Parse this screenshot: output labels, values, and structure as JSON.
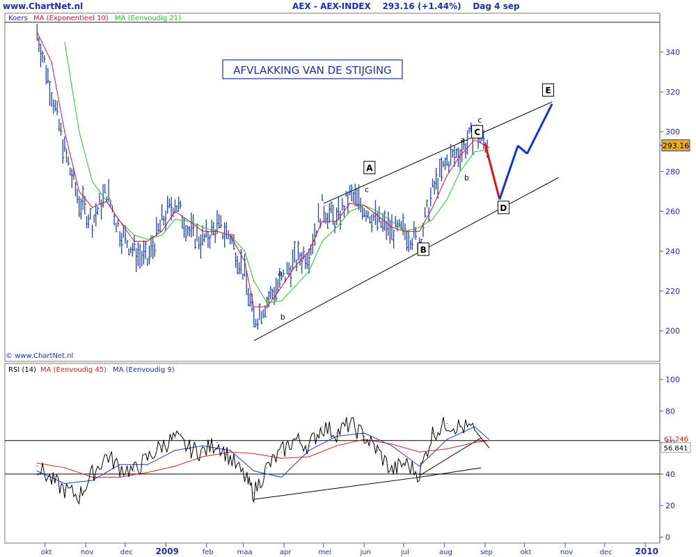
{
  "header": {
    "site": "www.ChartNet.nl",
    "instrument": "AEX - AEX-INDEX",
    "last_value": "293.16",
    "change": "(+1.44%)",
    "period": "Dag",
    "date": "4 sep"
  },
  "colors": {
    "price_bars": "#1f3fc0",
    "ema10": "#d4143c",
    "sma21": "#26c626",
    "rsi": "#000000",
    "rsi_ma45": "#d42020",
    "rsi_ma9": "#1f3fc0",
    "projection_down": "#e01010",
    "projection_up": "#1030e0",
    "axis_text": "#1c2fb0",
    "price_tag_bg": "#f0b01c"
  },
  "chart_data": [
    {
      "type": "line",
      "panel": "price",
      "legend": [
        "Koers",
        "MA (Exponentieel 10)",
        "MA (Eenvoudig 21)"
      ],
      "title_box": "AFVLAKKING VAN DE STIJGING",
      "watermark": "© www.ChartNet.nl",
      "yticks": [
        200,
        220,
        240,
        260,
        280,
        300,
        320,
        340
      ],
      "ylim": [
        185,
        355
      ],
      "last_price_label": "293.16",
      "x_months": [
        "okt",
        "nov",
        "dec",
        "2009",
        "feb",
        "maa",
        "apr",
        "mei",
        "jun",
        "jul",
        "aug",
        "sep",
        "okt",
        "nov",
        "dec",
        "2010"
      ],
      "x_year_labels": [
        "2009",
        "2010"
      ],
      "grid": false,
      "series": [
        {
          "name": "Koers",
          "style": "ohlc-bars",
          "x": [
            "2008-09-25",
            "2008-10-06",
            "2008-10-16",
            "2008-10-27",
            "2008-11-06",
            "2008-11-17",
            "2008-11-27",
            "2008-12-08",
            "2008-12-18",
            "2008-12-29",
            "2009-01-08",
            "2009-01-19",
            "2009-01-29",
            "2009-02-09",
            "2009-02-19",
            "2009-03-02",
            "2009-03-09",
            "2009-03-19",
            "2009-03-30",
            "2009-04-09",
            "2009-04-20",
            "2009-04-30",
            "2009-05-11",
            "2009-05-21",
            "2009-06-01",
            "2009-06-11",
            "2009-06-22",
            "2009-07-02",
            "2009-07-13",
            "2009-07-23",
            "2009-08-03",
            "2009-08-13",
            "2009-08-24",
            "2009-09-04"
          ],
          "values": [
            350,
            320,
            290,
            265,
            255,
            270,
            250,
            240,
            235,
            255,
            265,
            250,
            245,
            252,
            248,
            228,
            205,
            215,
            225,
            235,
            240,
            262,
            255,
            268,
            262,
            255,
            250,
            250,
            245,
            270,
            285,
            290,
            300,
            293
          ]
        },
        {
          "name": "MA (Exponentieel 10)",
          "x": [
            "2008-09-25",
            "2008-10-06",
            "2008-10-16",
            "2008-10-27",
            "2008-11-06",
            "2008-11-17",
            "2008-11-27",
            "2008-12-08",
            "2008-12-18",
            "2008-12-29",
            "2009-01-08",
            "2009-01-19",
            "2009-01-29",
            "2009-02-09",
            "2009-02-19",
            "2009-03-02",
            "2009-03-09",
            "2009-03-19",
            "2009-03-30",
            "2009-04-09",
            "2009-04-20",
            "2009-04-30",
            "2009-05-11",
            "2009-05-21",
            "2009-06-01",
            "2009-06-11",
            "2009-06-22",
            "2009-07-02",
            "2009-07-13",
            "2009-07-23",
            "2009-08-03",
            "2009-08-13",
            "2009-08-24",
            "2009-09-04"
          ],
          "values": [
            350,
            335,
            300,
            270,
            262,
            265,
            255,
            245,
            245,
            250,
            260,
            255,
            250,
            250,
            248,
            235,
            212,
            212,
            222,
            232,
            240,
            255,
            255,
            264,
            263,
            258,
            252,
            250,
            250,
            262,
            278,
            288,
            296,
            292
          ]
        },
        {
          "name": "MA (Eenvoudig 21)",
          "x": [
            "2008-10-16",
            "2008-10-27",
            "2008-11-06",
            "2008-11-17",
            "2008-11-27",
            "2008-12-08",
            "2008-12-18",
            "2008-12-29",
            "2009-01-08",
            "2009-01-19",
            "2009-01-29",
            "2009-02-09",
            "2009-02-19",
            "2009-03-02",
            "2009-03-09",
            "2009-03-19",
            "2009-03-30",
            "2009-04-09",
            "2009-04-20",
            "2009-04-30",
            "2009-05-11",
            "2009-05-21",
            "2009-06-01",
            "2009-06-11",
            "2009-06-22",
            "2009-07-02",
            "2009-07-13",
            "2009-07-23",
            "2009-08-03",
            "2009-08-13",
            "2009-08-24",
            "2009-09-04"
          ],
          "values": [
            345,
            300,
            275,
            265,
            255,
            248,
            246,
            248,
            256,
            255,
            252,
            250,
            248,
            240,
            225,
            214,
            215,
            222,
            230,
            245,
            252,
            260,
            263,
            260,
            255,
            250,
            252,
            256,
            266,
            280,
            290,
            291
          ]
        }
      ],
      "annotations": [
        {
          "label": "A",
          "boxed": true
        },
        {
          "label": "B",
          "boxed": true
        },
        {
          "label": "C",
          "boxed": true
        },
        {
          "label": "D",
          "boxed": true
        },
        {
          "label": "E",
          "boxed": true
        },
        {
          "label": "a",
          "boxed": false
        },
        {
          "label": "b",
          "boxed": false
        },
        {
          "label": "c",
          "boxed": false
        },
        {
          "label": "a",
          "boxed": false
        },
        {
          "label": "b",
          "boxed": false
        },
        {
          "label": "c",
          "boxed": false
        }
      ],
      "projection": [
        {
          "x": "2009-09-01",
          "y": 294
        },
        {
          "x": "2009-09-12",
          "y": 266
        },
        {
          "x": "2009-09-26",
          "y": 293
        },
        {
          "x": "2009-10-03",
          "y": 289
        },
        {
          "x": "2009-10-22",
          "y": 314
        }
      ]
    },
    {
      "type": "line",
      "panel": "rsi",
      "legend": [
        "RSI (14)",
        "MA (Eenvoudig 45)",
        "MA (Eenvoudig 9)"
      ],
      "yticks": [
        0,
        20,
        40,
        60,
        80,
        100
      ],
      "ylim": [
        -2,
        104
      ],
      "hlines": [
        40,
        61.246
      ],
      "value_labels": [
        "56.841",
        "61.246"
      ],
      "grid": false,
      "series": [
        {
          "name": "RSI (14)",
          "x": [
            "2008-09-25",
            "2008-10-06",
            "2008-10-16",
            "2008-10-27",
            "2008-11-06",
            "2008-11-17",
            "2008-11-27",
            "2008-12-08",
            "2008-12-18",
            "2008-12-29",
            "2009-01-08",
            "2009-01-19",
            "2009-01-29",
            "2009-02-09",
            "2009-02-19",
            "2009-03-02",
            "2009-03-09",
            "2009-03-19",
            "2009-03-30",
            "2009-04-09",
            "2009-04-20",
            "2009-04-30",
            "2009-05-11",
            "2009-05-21",
            "2009-06-01",
            "2009-06-11",
            "2009-06-22",
            "2009-07-02",
            "2009-07-13",
            "2009-07-23",
            "2009-08-03",
            "2009-08-13",
            "2009-08-24",
            "2009-09-04"
          ],
          "values": [
            45,
            36,
            30,
            26,
            40,
            52,
            44,
            42,
            50,
            58,
            63,
            56,
            54,
            60,
            50,
            38,
            28,
            44,
            54,
            62,
            58,
            70,
            66,
            72,
            64,
            55,
            42,
            47,
            40,
            66,
            72,
            70,
            68,
            56.8
          ]
        },
        {
          "name": "MA (Eenvoudig 45)",
          "x": [
            "2008-09-25",
            "2008-10-16",
            "2008-11-06",
            "2008-11-27",
            "2008-12-18",
            "2009-01-08",
            "2009-01-29",
            "2009-02-19",
            "2009-03-09",
            "2009-03-30",
            "2009-04-20",
            "2009-05-11",
            "2009-06-01",
            "2009-06-22",
            "2009-07-13",
            "2009-08-03",
            "2009-08-24",
            "2009-09-04"
          ],
          "values": [
            47,
            44,
            38,
            38,
            41,
            45,
            51,
            54,
            53,
            50,
            51,
            58,
            62,
            59,
            54,
            56,
            60,
            61.2
          ]
        },
        {
          "name": "MA (Eenvoudig 9)",
          "x": [
            "2008-09-25",
            "2008-10-16",
            "2008-11-06",
            "2008-11-27",
            "2008-12-18",
            "2009-01-08",
            "2009-01-29",
            "2009-02-19",
            "2009-03-09",
            "2009-03-30",
            "2009-04-20",
            "2009-05-11",
            "2009-06-01",
            "2009-06-22",
            "2009-07-13",
            "2009-08-03",
            "2009-08-24",
            "2009-09-04"
          ],
          "values": [
            42,
            34,
            36,
            46,
            46,
            55,
            58,
            55,
            42,
            38,
            55,
            64,
            66,
            58,
            45,
            62,
            70,
            62
          ]
        }
      ]
    }
  ]
}
